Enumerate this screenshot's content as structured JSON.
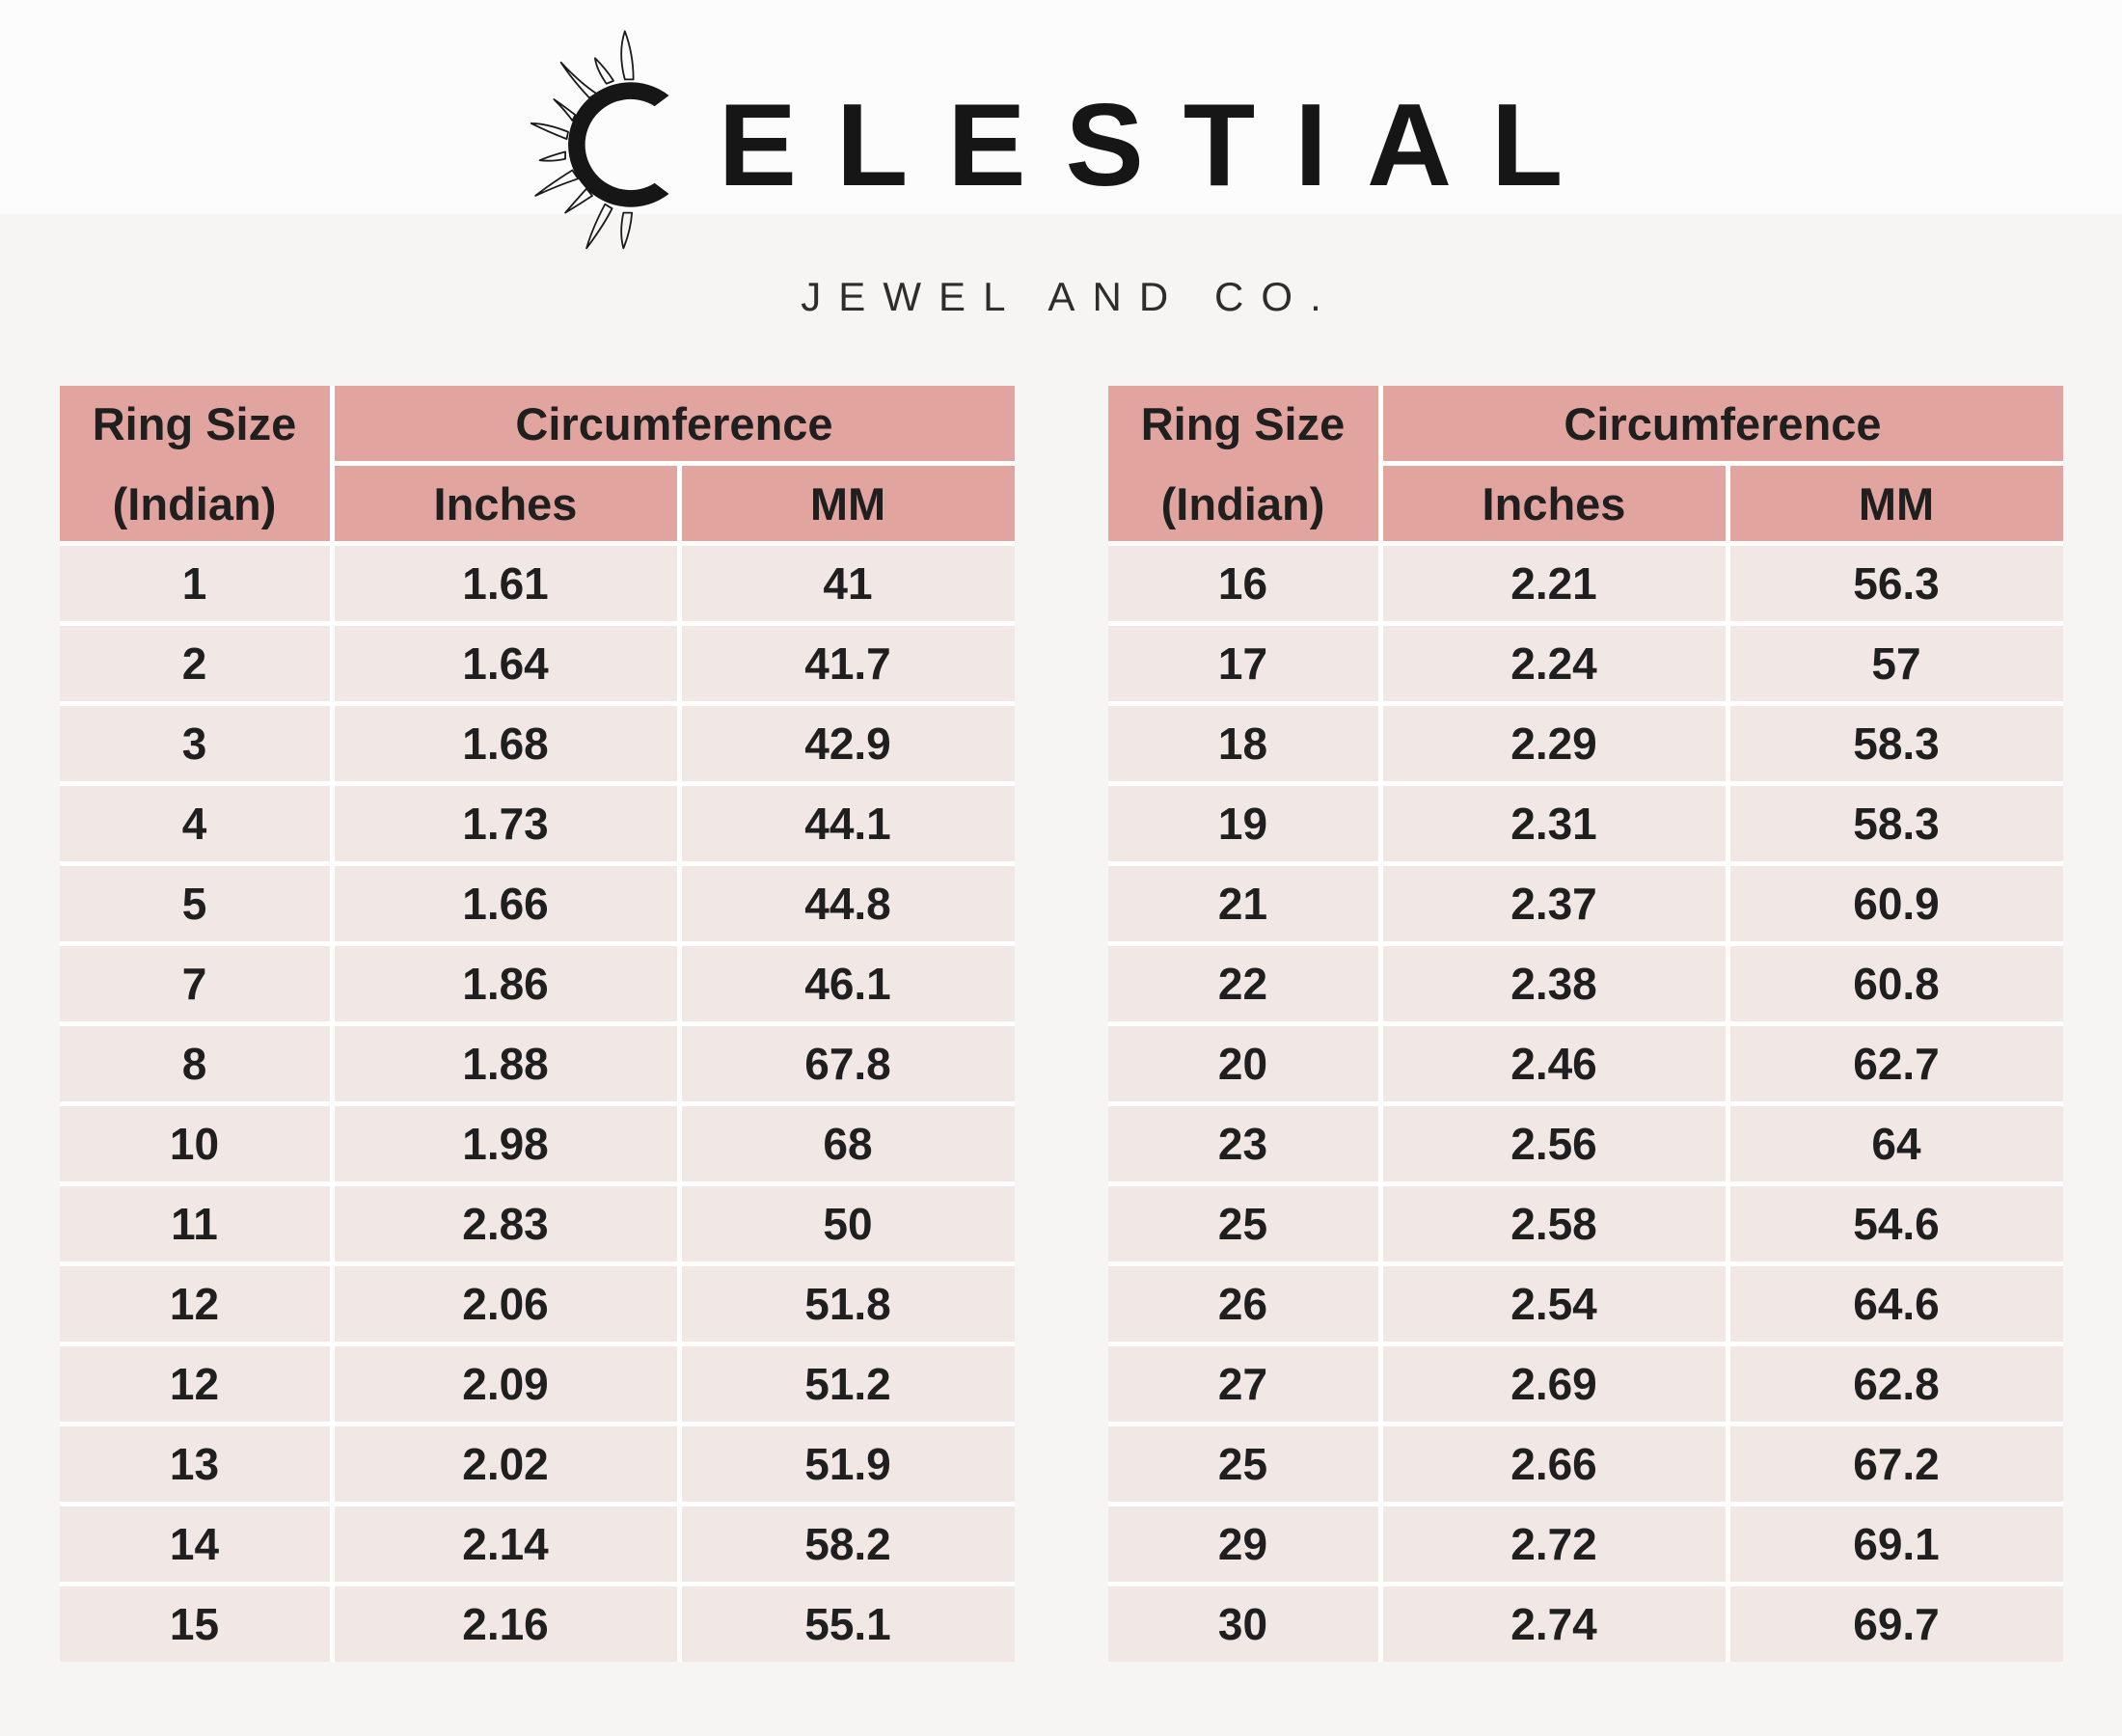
{
  "brand": {
    "icon": "sun-crescent-icon",
    "wordmark": "CELESTIAL",
    "wordmark_tail": "ELESTIAL",
    "tagline": "JEWEL AND CO."
  },
  "colors": {
    "header_bg": "#e2a49f",
    "row_bg": "#f1e7e5",
    "table_gap": "#ffffff",
    "page_bg": "#f7f5f4",
    "text": "#1f1f1f"
  },
  "tables": [
    {
      "id": "left",
      "col1_header": [
        "Ring Size",
        "(Indian)"
      ],
      "group_header": "Circumference",
      "sub_headers": [
        "Inches",
        "MM"
      ],
      "rows": [
        [
          "1",
          "1.61",
          "41"
        ],
        [
          "2",
          "1.64",
          "41.7"
        ],
        [
          "3",
          "1.68",
          "42.9"
        ],
        [
          "4",
          "1.73",
          "44.1"
        ],
        [
          "5",
          "1.66",
          "44.8"
        ],
        [
          "7",
          "1.86",
          "46.1"
        ],
        [
          "8",
          "1.88",
          "67.8"
        ],
        [
          "10",
          "1.98",
          "68"
        ],
        [
          "11",
          "2.83",
          "50"
        ],
        [
          "12",
          "2.06",
          "51.8"
        ],
        [
          "12",
          "2.09",
          "51.2"
        ],
        [
          "13",
          "2.02",
          "51.9"
        ],
        [
          "14",
          "2.14",
          "58.2"
        ],
        [
          "15",
          "2.16",
          "55.1"
        ]
      ]
    },
    {
      "id": "right",
      "col1_header": [
        "Ring Size",
        "(Indian)"
      ],
      "group_header": "Circumference",
      "sub_headers": [
        "Inches",
        "MM"
      ],
      "rows": [
        [
          "16",
          "2.21",
          "56.3"
        ],
        [
          "17",
          "2.24",
          "57"
        ],
        [
          "18",
          "2.29",
          "58.3"
        ],
        [
          "19",
          "2.31",
          "58.3"
        ],
        [
          "21",
          "2.37",
          "60.9"
        ],
        [
          "22",
          "2.38",
          "60.8"
        ],
        [
          "20",
          "2.46",
          "62.7"
        ],
        [
          "23",
          "2.56",
          "64"
        ],
        [
          "25",
          "2.58",
          "54.6"
        ],
        [
          "26",
          "2.54",
          "64.6"
        ],
        [
          "27",
          "2.69",
          "62.8"
        ],
        [
          "25",
          "2.66",
          "67.2"
        ],
        [
          "29",
          "2.72",
          "69.1"
        ],
        [
          "30",
          "2.74",
          "69.7"
        ]
      ]
    }
  ]
}
